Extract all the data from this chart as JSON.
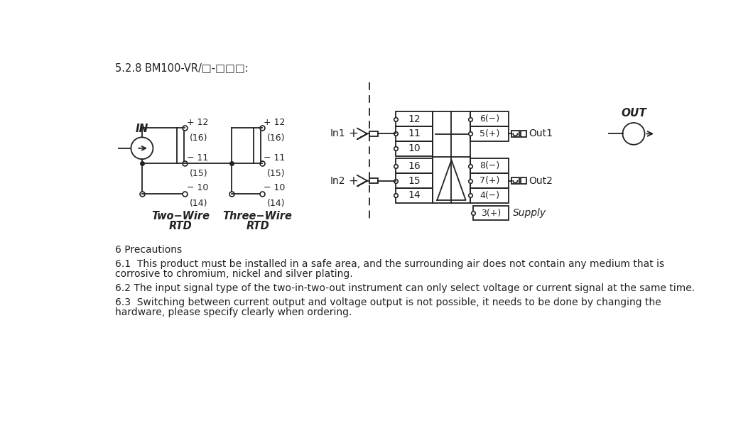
{
  "title": "5.2.8 BM100-VR/□-□□□:",
  "bg_color": "#ffffff",
  "text_color": "#222222",
  "lc": "#222222",
  "section6_title": "6 Precautions",
  "section61_line1": "6.1  This product must be installed in a safe area, and the surrounding air does not contain any medium that is",
  "section61_line2": "corrosive to chromium, nickel and silver plating.",
  "section62": "6.2 The input signal type of the two-in-two-out instrument can only select voltage or current signal at the same time.",
  "section63_line1": "6.3  Switching between current output and voltage output is not possible, it needs to be done by changing the",
  "section63_line2": "hardware, please specify clearly when ordering."
}
